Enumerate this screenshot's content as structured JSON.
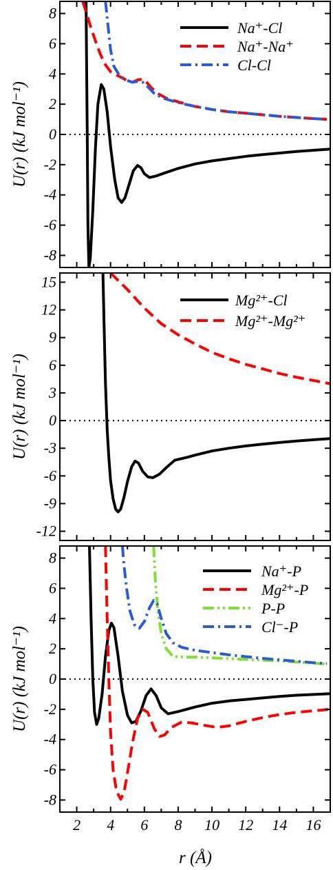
{
  "chart_data": [
    {
      "type": "line",
      "panel": "top",
      "ylabel": "U(r) (kJ mol⁻¹)",
      "xlim": [
        1,
        17
      ],
      "ylim": [
        -8.8,
        8.8
      ],
      "yticks": [
        -8,
        -6,
        -4,
        -2,
        0,
        2,
        4,
        6,
        8
      ],
      "ytick_labels": [
        "-8",
        "-6",
        "-4",
        "-2",
        "0",
        "2",
        "4",
        "6",
        "8"
      ],
      "zero_line": true,
      "legend_position": "top-right",
      "series": [
        {
          "name": "Na⁺-Cl",
          "color": "#000000",
          "dash": "solid",
          "points": [
            [
              2.55,
              8.8
            ],
            [
              2.58,
              5
            ],
            [
              2.62,
              0
            ],
            [
              2.66,
              -6
            ],
            [
              2.72,
              -8.8
            ],
            [
              2.8,
              -8.2
            ],
            [
              2.95,
              -5
            ],
            [
              3.1,
              -1
            ],
            [
              3.25,
              2
            ],
            [
              3.45,
              3.3
            ],
            [
              3.6,
              3.0
            ],
            [
              3.8,
              1.5
            ],
            [
              4.0,
              -0.8
            ],
            [
              4.25,
              -3.0
            ],
            [
              4.45,
              -4.2
            ],
            [
              4.65,
              -4.5
            ],
            [
              4.85,
              -4.2
            ],
            [
              5.1,
              -3.3
            ],
            [
              5.35,
              -2.4
            ],
            [
              5.6,
              -2.05
            ],
            [
              5.8,
              -2.2
            ],
            [
              6.0,
              -2.6
            ],
            [
              6.3,
              -2.85
            ],
            [
              6.7,
              -2.75
            ],
            [
              7.2,
              -2.55
            ],
            [
              8,
              -2.25
            ],
            [
              9,
              -1.95
            ],
            [
              10,
              -1.75
            ],
            [
              11,
              -1.6
            ],
            [
              12,
              -1.45
            ],
            [
              13,
              -1.33
            ],
            [
              14,
              -1.23
            ],
            [
              15,
              -1.13
            ],
            [
              16,
              -1.05
            ],
            [
              17,
              -0.97
            ]
          ]
        },
        {
          "name": "Na⁺-Na⁺",
          "color": "#ff0000",
          "dash": "dashed",
          "points": [
            [
              2.35,
              8.8
            ],
            [
              2.5,
              8.3
            ],
            [
              2.8,
              7.2
            ],
            [
              3.1,
              6.2
            ],
            [
              3.4,
              5.3
            ],
            [
              3.7,
              4.6
            ],
            [
              4.0,
              4.15
            ],
            [
              4.5,
              3.85
            ],
            [
              5.0,
              3.55
            ],
            [
              5.3,
              3.45
            ],
            [
              5.6,
              3.6
            ],
            [
              5.85,
              3.65
            ],
            [
              6.1,
              3.5
            ],
            [
              6.4,
              3.1
            ],
            [
              6.8,
              2.7
            ],
            [
              7.3,
              2.4
            ],
            [
              8,
              2.15
            ],
            [
              9,
              1.85
            ],
            [
              10,
              1.65
            ],
            [
              11,
              1.5
            ],
            [
              12,
              1.4
            ],
            [
              13,
              1.3
            ],
            [
              14,
              1.2
            ],
            [
              15,
              1.12
            ],
            [
              16,
              1.05
            ],
            [
              16.8,
              1.0
            ]
          ]
        },
        {
          "name": "Cl-Cl",
          "color": "#2a5bd7",
          "dash": "dashdot",
          "points": [
            [
              3.7,
              8.8
            ],
            [
              3.85,
              7.2
            ],
            [
              4.0,
              5.6
            ],
            [
              4.2,
              4.5
            ],
            [
              4.5,
              3.95
            ],
            [
              4.9,
              3.6
            ],
            [
              5.3,
              3.45
            ],
            [
              5.6,
              3.5
            ],
            [
              5.9,
              3.45
            ],
            [
              6.2,
              3.15
            ],
            [
              6.6,
              2.7
            ],
            [
              7.1,
              2.4
            ],
            [
              8,
              2.1
            ],
            [
              9,
              1.85
            ],
            [
              10,
              1.65
            ],
            [
              11,
              1.5
            ],
            [
              12,
              1.4
            ],
            [
              13,
              1.3
            ],
            [
              14,
              1.2
            ],
            [
              15,
              1.12
            ],
            [
              16,
              1.05
            ],
            [
              16.8,
              1.0
            ]
          ]
        }
      ]
    },
    {
      "type": "line",
      "panel": "middle",
      "ylabel": "U(r) (kJ mol⁻¹)",
      "xlim": [
        1,
        17
      ],
      "ylim": [
        -13,
        16
      ],
      "yticks": [
        -12,
        -9,
        -6,
        -3,
        0,
        3,
        6,
        9,
        12,
        15
      ],
      "ytick_labels": [
        "-12",
        "-9",
        "-6",
        "-3",
        "0",
        "3",
        "6",
        "9",
        "12",
        "15"
      ],
      "zero_line": true,
      "legend_position": "top-right",
      "series": [
        {
          "name": "Mg²⁺-Cl",
          "color": "#000000",
          "dash": "solid",
          "points": [
            [
              3.55,
              16
            ],
            [
              3.62,
              10
            ],
            [
              3.7,
              4
            ],
            [
              3.8,
              -1
            ],
            [
              3.9,
              -4
            ],
            [
              4.0,
              -6.5
            ],
            [
              4.15,
              -8.5
            ],
            [
              4.3,
              -9.6
            ],
            [
              4.45,
              -9.9
            ],
            [
              4.6,
              -9.6
            ],
            [
              4.8,
              -8.3
            ],
            [
              5.0,
              -6.6
            ],
            [
              5.25,
              -5.0
            ],
            [
              5.45,
              -4.4
            ],
            [
              5.65,
              -4.6
            ],
            [
              5.9,
              -5.5
            ],
            [
              6.2,
              -6.1
            ],
            [
              6.5,
              -6.2
            ],
            [
              6.9,
              -5.8
            ],
            [
              7.3,
              -5.1
            ],
            [
              7.8,
              -4.3
            ],
            [
              8.5,
              -4.0
            ],
            [
              9,
              -3.75
            ],
            [
              10,
              -3.3
            ],
            [
              11,
              -3.0
            ],
            [
              12,
              -2.75
            ],
            [
              13,
              -2.55
            ],
            [
              14,
              -2.38
            ],
            [
              15,
              -2.22
            ],
            [
              16,
              -2.08
            ],
            [
              17,
              -1.95
            ]
          ]
        },
        {
          "name": "Mg²⁺-Mg²⁺",
          "color": "#ff0000",
          "dash": "dashed",
          "points": [
            [
              4.0,
              16
            ],
            [
              4.5,
              15.1
            ],
            [
              5,
              14.2
            ],
            [
              5.5,
              13.2
            ],
            [
              6,
              12.2
            ],
            [
              7,
              10.5
            ],
            [
              8,
              9.3
            ],
            [
              9,
              8.3
            ],
            [
              10,
              7.4
            ],
            [
              11,
              6.7
            ],
            [
              12,
              6.1
            ],
            [
              13,
              5.6
            ],
            [
              14,
              5.1
            ],
            [
              15,
              4.7
            ],
            [
              16,
              4.35
            ],
            [
              17,
              4.0
            ]
          ]
        }
      ]
    },
    {
      "type": "line",
      "panel": "bottom",
      "ylabel": "U(r) (kJ mol⁻¹)",
      "xlabel": "r (Å)",
      "xlim": [
        1,
        17
      ],
      "ylim": [
        -8.8,
        8.8
      ],
      "xticks": [
        2,
        4,
        6,
        8,
        10,
        12,
        14,
        16
      ],
      "xtick_labels": [
        "2",
        "4",
        "6",
        "8",
        "10",
        "12",
        "14",
        "16"
      ],
      "yticks": [
        -8,
        -6,
        -4,
        -2,
        0,
        2,
        4,
        6,
        8
      ],
      "ytick_labels": [
        "-8",
        "-6",
        "-4",
        "-2",
        "0",
        "2",
        "4",
        "6",
        "8"
      ],
      "zero_line": true,
      "legend_position": "top-right",
      "series": [
        {
          "name": "Na⁺-P",
          "color": "#000000",
          "dash": "solid",
          "points": [
            [
              2.75,
              8.8
            ],
            [
              2.85,
              4
            ],
            [
              2.95,
              0
            ],
            [
              3.05,
              -2.2
            ],
            [
              3.18,
              -3.0
            ],
            [
              3.3,
              -2.6
            ],
            [
              3.5,
              -1.0
            ],
            [
              3.7,
              1.5
            ],
            [
              3.9,
              3.2
            ],
            [
              4.05,
              3.7
            ],
            [
              4.2,
              3.4
            ],
            [
              4.45,
              1.5
            ],
            [
              4.7,
              -0.8
            ],
            [
              5.0,
              -2.4
            ],
            [
              5.25,
              -2.9
            ],
            [
              5.5,
              -2.8
            ],
            [
              5.8,
              -2.1
            ],
            [
              6.1,
              -1.1
            ],
            [
              6.4,
              -0.65
            ],
            [
              6.7,
              -1.1
            ],
            [
              7.0,
              -1.9
            ],
            [
              7.4,
              -2.3
            ],
            [
              8,
              -2.15
            ],
            [
              9,
              -1.85
            ],
            [
              10,
              -1.6
            ],
            [
              11,
              -1.45
            ],
            [
              12,
              -1.35
            ],
            [
              13,
              -1.25
            ],
            [
              14,
              -1.15
            ],
            [
              15,
              -1.07
            ],
            [
              16,
              -1.02
            ],
            [
              17,
              -0.97
            ]
          ]
        },
        {
          "name": "Mg²⁺-P",
          "color": "#ff0000",
          "dash": "dashed",
          "points": [
            [
              3.7,
              8.8
            ],
            [
              3.8,
              4
            ],
            [
              3.9,
              0
            ],
            [
              4.0,
              -3.5
            ],
            [
              4.15,
              -6
            ],
            [
              4.35,
              -7.4
            ],
            [
              4.6,
              -7.95
            ],
            [
              4.8,
              -7.5
            ],
            [
              5.0,
              -6.2
            ],
            [
              5.3,
              -4.2
            ],
            [
              5.6,
              -2.6
            ],
            [
              5.9,
              -2.0
            ],
            [
              6.2,
              -2.2
            ],
            [
              6.6,
              -3.3
            ],
            [
              6.9,
              -3.8
            ],
            [
              7.2,
              -3.7
            ],
            [
              7.6,
              -3.2
            ],
            [
              8.2,
              -2.85
            ],
            [
              8.8,
              -2.9
            ],
            [
              9.5,
              -3.05
            ],
            [
              10.3,
              -3.2
            ],
            [
              11,
              -3.1
            ],
            [
              12,
              -2.8
            ],
            [
              13,
              -2.55
            ],
            [
              14,
              -2.35
            ],
            [
              15,
              -2.2
            ],
            [
              16,
              -2.1
            ],
            [
              17,
              -2.0
            ]
          ]
        },
        {
          "name": "P-P",
          "color": "#7fe030",
          "dash": "dashdotdot",
          "points": [
            [
              6.55,
              8.8
            ],
            [
              6.65,
              6.5
            ],
            [
              6.8,
              4.5
            ],
            [
              7.0,
              3.0
            ],
            [
              7.3,
              2.0
            ],
            [
              7.7,
              1.5
            ],
            [
              8.3,
              1.45
            ],
            [
              9,
              1.45
            ],
            [
              10,
              1.4
            ],
            [
              11,
              1.35
            ],
            [
              12,
              1.3
            ],
            [
              13,
              1.25
            ],
            [
              14,
              1.2
            ],
            [
              15,
              1.12
            ],
            [
              16,
              1.05
            ],
            [
              16.8,
              1.0
            ]
          ]
        },
        {
          "name": "Cl⁻-P",
          "color": "#2a5bd7",
          "dash": "dashdot",
          "points": [
            [
              4.7,
              8.8
            ],
            [
              4.8,
              7.5
            ],
            [
              4.95,
              6
            ],
            [
              5.15,
              4.5
            ],
            [
              5.4,
              3.6
            ],
            [
              5.7,
              3.35
            ],
            [
              6.0,
              3.8
            ],
            [
              6.3,
              4.7
            ],
            [
              6.55,
              5.2
            ],
            [
              6.75,
              5.0
            ],
            [
              7.0,
              4.0
            ],
            [
              7.3,
              3.0
            ],
            [
              7.7,
              2.4
            ],
            [
              8.2,
              2.1
            ],
            [
              9,
              1.9
            ],
            [
              10,
              1.75
            ],
            [
              11,
              1.6
            ],
            [
              12,
              1.48
            ],
            [
              13,
              1.37
            ],
            [
              14,
              1.27
            ],
            [
              15,
              1.17
            ],
            [
              16,
              1.08
            ],
            [
              16.8,
              1.02
            ]
          ]
        }
      ]
    }
  ]
}
